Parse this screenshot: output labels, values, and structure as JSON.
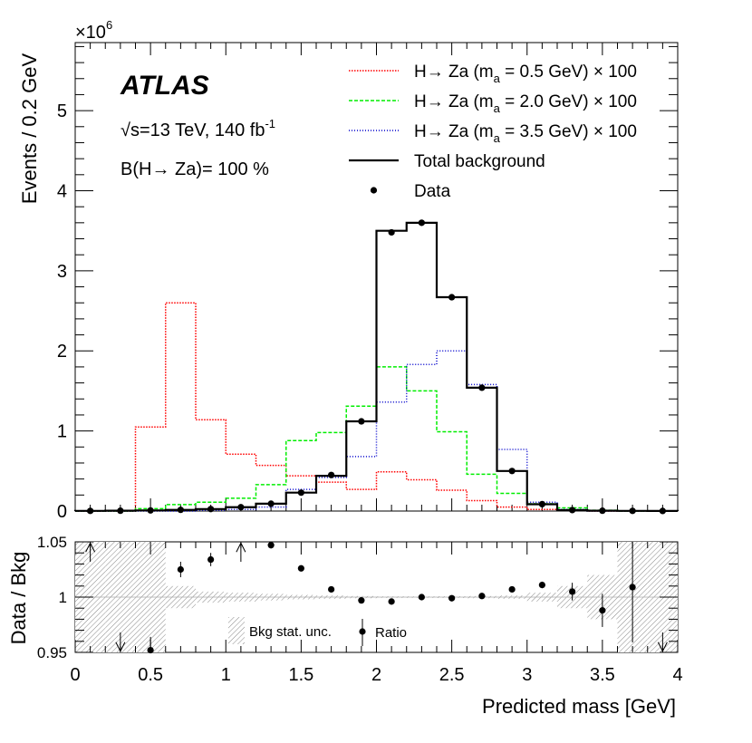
{
  "chart_data": [
    {
      "type": "histogram",
      "panel": "main",
      "experiment": "ATLAS",
      "energy_label": "s=13 TeV, 140 fb",
      "energy_sqrt_symbol": "√",
      "lumi_sup": "-1",
      "br_label": "B(H→ Za)= 100 %",
      "ylabel": "Events / 0.2 GeV",
      "y_multiplier_base": "×10",
      "y_multiplier_exp": "6",
      "xlim": [
        0,
        4
      ],
      "ylim": [
        0,
        5.85
      ],
      "bin_edges": [
        0,
        0.2,
        0.4,
        0.6,
        0.8,
        1.0,
        1.2,
        1.4,
        1.6,
        1.8,
        2.0,
        2.2,
        2.4,
        2.6,
        2.8,
        3.0,
        3.2,
        3.4,
        3.6,
        3.8,
        4.0
      ],
      "xticks": [
        "0",
        "0.5",
        "1",
        "1.5",
        "2",
        "2.5",
        "3",
        "3.5",
        "4"
      ],
      "xtick_values": [
        0,
        0.5,
        1,
        1.5,
        2,
        2.5,
        3,
        3.5,
        4
      ],
      "yticks": [
        "0",
        "1",
        "2",
        "3",
        "4",
        "5"
      ],
      "ytick_values": [
        0,
        1,
        2,
        3,
        4,
        5
      ],
      "series": [
        {
          "name": "H→ Za (m",
          "sub": "a",
          "suffix": " = 0.5 GeV) × 100",
          "color": "#ff0000",
          "dash": "1.5 1.5",
          "values": [
            0,
            0,
            1.05,
            2.6,
            1.14,
            0.71,
            0.57,
            0.44,
            0.36,
            0.27,
            0.49,
            0.39,
            0.26,
            0.13,
            0.05,
            0.02,
            0.01,
            0,
            0,
            0
          ]
        },
        {
          "name": "H→ Za (m",
          "sub": "a",
          "suffix": " = 2.0 GeV) × 100",
          "color": "#00ee00",
          "dash": "4 2",
          "values": [
            0,
            0,
            0.03,
            0.08,
            0.11,
            0.16,
            0.33,
            0.88,
            0.98,
            1.31,
            1.8,
            1.5,
            0.99,
            0.46,
            0.22,
            0.09,
            0.04,
            0.01,
            0,
            0
          ]
        },
        {
          "name": "H→ Za (m",
          "sub": "a",
          "suffix": " = 3.5 GeV) × 100",
          "color": "#0000cc",
          "dash": "1 2",
          "values": [
            0,
            0,
            0,
            0,
            0.01,
            0.02,
            0.05,
            0.27,
            0.42,
            0.68,
            1.36,
            1.83,
            2.0,
            1.58,
            0.77,
            0.11,
            0.02,
            0,
            0,
            0
          ]
        },
        {
          "name": "Total background",
          "color": "#000000",
          "dash": "",
          "values": [
            0.002,
            0.004,
            0.008,
            0.015,
            0.025,
            0.048,
            0.092,
            0.23,
            0.44,
            1.12,
            3.5,
            3.6,
            2.67,
            1.54,
            0.5,
            0.085,
            0.012,
            0.004,
            0.002,
            0.001
          ]
        }
      ],
      "data": {
        "name": "Data",
        "x": [
          0.1,
          0.3,
          0.5,
          0.7,
          0.9,
          1.1,
          1.3,
          1.5,
          1.7,
          1.9,
          2.1,
          2.3,
          2.5,
          2.7,
          2.9,
          3.1,
          3.3,
          3.5,
          3.7,
          3.9
        ],
        "y": [
          0.002,
          0.004,
          0.008,
          0.015,
          0.025,
          0.048,
          0.092,
          0.23,
          0.45,
          1.12,
          3.48,
          3.6,
          2.67,
          1.54,
          0.5,
          0.086,
          0.012,
          0.004,
          0.002,
          0.001
        ]
      }
    },
    {
      "type": "ratio",
      "panel": "ratio",
      "ylabel": "Data / Bkg",
      "xlabel": "Predicted mass [GeV]",
      "xlim": [
        0,
        4
      ],
      "ylim": [
        0.95,
        1.05
      ],
      "yticks": [
        "0.95",
        "1",
        "1.05"
      ],
      "ytick_values": [
        0.95,
        1.0,
        1.05
      ],
      "band_label": "Bkg stat. unc.",
      "points_label": "Ratio",
      "band_halfwidth": [
        0.05,
        0.05,
        0.05,
        0.01,
        0.005,
        0.004,
        0.003,
        0.002,
        0.0015,
        0.001,
        0.0007,
        0.0007,
        0.0008,
        0.001,
        0.0015,
        0.004,
        0.01,
        0.02,
        0.05,
        0.05
      ],
      "ratio_x": [
        0.5,
        0.7,
        0.9,
        1.3,
        1.5,
        1.7,
        1.9,
        2.1,
        2.3,
        2.5,
        2.7,
        2.9,
        3.1,
        3.3,
        3.5,
        3.7
      ],
      "ratio_y": [
        0.952,
        1.025,
        1.034,
        1.047,
        1.026,
        1.007,
        0.997,
        0.996,
        1.0,
        0.999,
        1.001,
        1.007,
        1.011,
        1.005,
        0.988,
        1.009
      ],
      "ratio_err": [
        0.012,
        0.007,
        0.006,
        0.003,
        0.002,
        0.002,
        0.001,
        0.001,
        0.001,
        0.001,
        0.001,
        0.002,
        0.003,
        0.008,
        0.015,
        0.05
      ],
      "arrows_up_x": [
        0.1,
        1.1
      ],
      "arrows_down_x": [
        0.3,
        3.9
      ]
    }
  ]
}
